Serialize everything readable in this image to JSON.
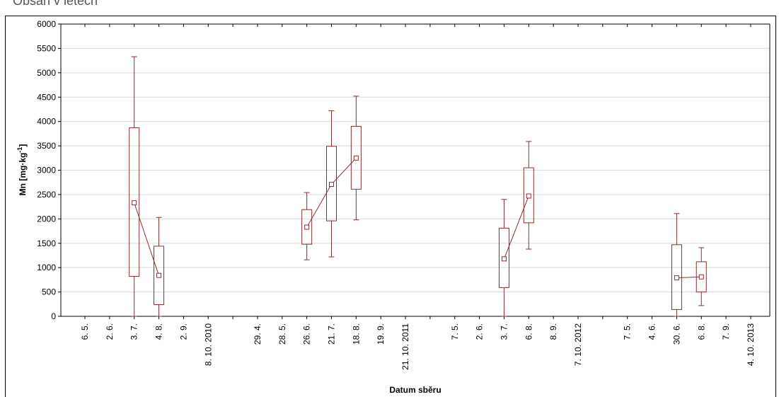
{
  "header": {
    "cut_text": "Obsah    v letech"
  },
  "chart_data": {
    "type": "boxplot",
    "ylabel_main": "Mn [mg·kg",
    "ylabel_sup": "-1",
    "ylabel_end": "]",
    "xlabel": "Datum sběru",
    "ylim": [
      0,
      6000
    ],
    "yticks": [
      0,
      500,
      1000,
      1500,
      2000,
      2500,
      3000,
      3500,
      4000,
      4500,
      5000,
      5500,
      6000
    ],
    "grid": "horizontal",
    "categories": [
      "6. 5.",
      "2. 6.",
      "3. 7.",
      "4. 8.",
      "2. 9.",
      "8. 10. 2010",
      "",
      "29. 4.",
      "28. 5.",
      "26. 6.",
      "21. 7.",
      "18. 8.",
      "19. 9.",
      "21. 10. 2011",
      "",
      "7. 5.",
      "2. 6.",
      "3. 7.",
      "6. 8.",
      "8. 9.",
      "7. 10. 2012",
      "",
      "7. 5.",
      "4. 6.",
      "30. 6.",
      "6. 8.",
      "7. 9.",
      "4. 10. 2013"
    ],
    "boxes": [
      {
        "category_index": 2,
        "whisker_low": 0,
        "box_low": 820,
        "mean": 2330,
        "box_high": 3870,
        "whisker_high": 5330,
        "group": 0
      },
      {
        "category_index": 3,
        "whisker_low": 0,
        "box_low": 240,
        "mean": 840,
        "box_high": 1440,
        "whisker_high": 2030,
        "group": 0
      },
      {
        "category_index": 9,
        "whisker_low": 1160,
        "box_low": 1480,
        "mean": 1830,
        "box_high": 2190,
        "whisker_high": 2540,
        "group": 1
      },
      {
        "category_index": 10,
        "whisker_low": 1220,
        "box_low": 1960,
        "mean": 2710,
        "box_high": 3490,
        "whisker_high": 4220,
        "group": 1
      },
      {
        "category_index": 11,
        "whisker_low": 1980,
        "box_low": 2610,
        "mean": 3250,
        "box_high": 3900,
        "whisker_high": 4520,
        "group": 1
      },
      {
        "category_index": 17,
        "whisker_low": 0,
        "box_low": 590,
        "mean": 1180,
        "box_high": 1810,
        "whisker_high": 2400,
        "group": 2
      },
      {
        "category_index": 18,
        "whisker_low": 1380,
        "box_low": 1920,
        "mean": 2470,
        "box_high": 3050,
        "whisker_high": 3590,
        "group": 2
      },
      {
        "category_index": 24,
        "whisker_low": 0,
        "box_low": 140,
        "mean": 790,
        "box_high": 1470,
        "whisker_high": 2110,
        "group": 3
      },
      {
        "category_index": 25,
        "whisker_low": 220,
        "box_low": 500,
        "mean": 810,
        "box_high": 1120,
        "whisker_high": 1410,
        "group": 3
      }
    ],
    "colors": {
      "series": "#8b2d2d",
      "grid": "#d9d9d9",
      "axis": "#000000"
    }
  }
}
